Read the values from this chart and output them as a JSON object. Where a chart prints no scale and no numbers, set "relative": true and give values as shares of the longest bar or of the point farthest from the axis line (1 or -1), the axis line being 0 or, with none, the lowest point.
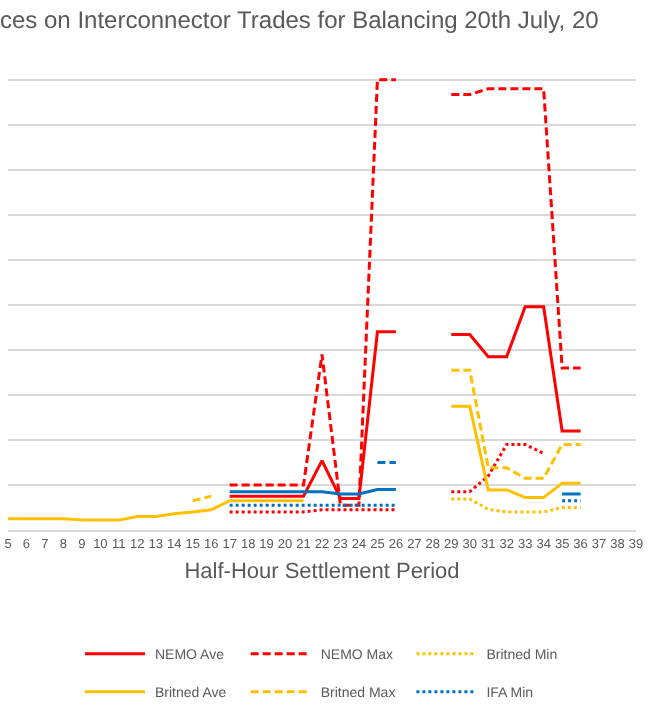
{
  "chart_data": {
    "type": "line",
    "title": "ces on Interconnector Trades for Balancing 20th July, 20",
    "xlabel": "Half-Hour Settlement Period",
    "relative": true,
    "grid": "y",
    "legend": "bottom",
    "categories": [
      "5",
      "6",
      "7",
      "8",
      "9",
      "10",
      "11",
      "12",
      "13",
      "14",
      "15",
      "16",
      "17",
      "18",
      "19",
      "20",
      "21",
      "22",
      "23",
      "24",
      "25",
      "26",
      "27",
      "28",
      "29",
      "30",
      "31",
      "32",
      "33",
      "34",
      "35",
      "36",
      "37",
      "38",
      "39"
    ],
    "series": [
      {
        "color": "#ff0000",
        "line_style": "dotted",
        "values": [
          null,
          null,
          null,
          null,
          null,
          null,
          null,
          null,
          null,
          null,
          null,
          null,
          0.04,
          0.04,
          0.04,
          0.04,
          0.04,
          0.045,
          0.045,
          0.045,
          0.045,
          0.045,
          null,
          null,
          0.085,
          0.085,
          0.12,
          0.19,
          0.19,
          0.17,
          null,
          null,
          null,
          null,
          null
        ]
      },
      {
        "name": "NEMO Ave",
        "color": "#ff0000",
        "line_style": "solid",
        "values": [
          null,
          null,
          null,
          null,
          null,
          null,
          null,
          null,
          null,
          null,
          null,
          null,
          0.075,
          0.075,
          0.075,
          0.075,
          0.075,
          0.154,
          0.07,
          0.07,
          0.44,
          0.44,
          null,
          null,
          0.434,
          0.434,
          0.385,
          0.385,
          0.496,
          0.496,
          0.22,
          0.22,
          null,
          null,
          null
        ]
      },
      {
        "name": "NEMO Max",
        "color": "#ff0000",
        "line_style": "dashed",
        "values": [
          null,
          null,
          null,
          null,
          null,
          null,
          null,
          null,
          null,
          null,
          null,
          null,
          0.1,
          0.1,
          0.1,
          0.1,
          0.1,
          0.39,
          0.055,
          0.055,
          1,
          1,
          null,
          null,
          0.967,
          0.967,
          0.98,
          0.98,
          0.98,
          0.98,
          0.36,
          0.36,
          null,
          null,
          null
        ]
      },
      {
        "name": "Britned Min",
        "color": "#ffc000",
        "line_style": "dotted",
        "values": [
          null,
          null,
          null,
          null,
          null,
          null,
          null,
          null,
          null,
          null,
          null,
          null,
          null,
          null,
          null,
          null,
          null,
          null,
          null,
          null,
          null,
          null,
          null,
          null,
          0.069,
          0.069,
          0.046,
          0.04,
          0.04,
          0.04,
          0.05,
          0.05,
          null,
          null,
          null
        ]
      },
      {
        "name": "Britned Ave",
        "color": "#ffc000",
        "line_style": "solid",
        "values": [
          0.025,
          0.025,
          0.025,
          0.025,
          0.022,
          0.022,
          0.022,
          0.03,
          0.03,
          0.036,
          0.04,
          0.045,
          0.065,
          0.065,
          0.065,
          0.065,
          0.065,
          null,
          null,
          null,
          null,
          null,
          null,
          null,
          0.275,
          0.275,
          0.089,
          0.089,
          0.072,
          0.072,
          0.104,
          0.104,
          null,
          null,
          null
        ]
      },
      {
        "name": "Britned Max",
        "color": "#ffc000",
        "line_style": "dashed",
        "values": [
          null,
          null,
          null,
          null,
          null,
          null,
          null,
          null,
          null,
          null,
          0.065,
          0.075,
          null,
          null,
          null,
          null,
          null,
          null,
          null,
          null,
          null,
          null,
          null,
          null,
          0.355,
          0.355,
          0.138,
          0.138,
          0.115,
          0.115,
          0.19,
          0.19,
          null,
          null,
          null
        ]
      },
      {
        "name": "IFA Min",
        "color": "#0070c0",
        "line_style": "dotted",
        "values": [
          null,
          null,
          null,
          null,
          null,
          null,
          null,
          null,
          null,
          null,
          null,
          null,
          0.055,
          0.055,
          0.055,
          0.055,
          0.055,
          0.055,
          0.055,
          0.055,
          0.055,
          0.055,
          null,
          null,
          null,
          null,
          null,
          null,
          null,
          null,
          0.065,
          0.065,
          null,
          null,
          null
        ]
      },
      {
        "color": "#0070c0",
        "line_style": "solid",
        "values": [
          null,
          null,
          null,
          null,
          null,
          null,
          null,
          null,
          null,
          null,
          null,
          null,
          0.085,
          0.085,
          0.085,
          0.085,
          0.085,
          0.085,
          0.08,
          0.08,
          0.09,
          0.09,
          null,
          null,
          null,
          null,
          null,
          null,
          null,
          null,
          0.08,
          0.08,
          null,
          null,
          null
        ]
      },
      {
        "color": "#0070c0",
        "line_style": "dashed",
        "values": [
          null,
          null,
          null,
          null,
          null,
          null,
          null,
          null,
          null,
          null,
          null,
          null,
          null,
          null,
          null,
          null,
          null,
          null,
          null,
          null,
          0.15,
          0.15,
          null,
          null,
          null,
          null,
          null,
          null,
          null,
          null,
          null,
          null,
          null,
          null,
          null
        ]
      }
    ]
  }
}
